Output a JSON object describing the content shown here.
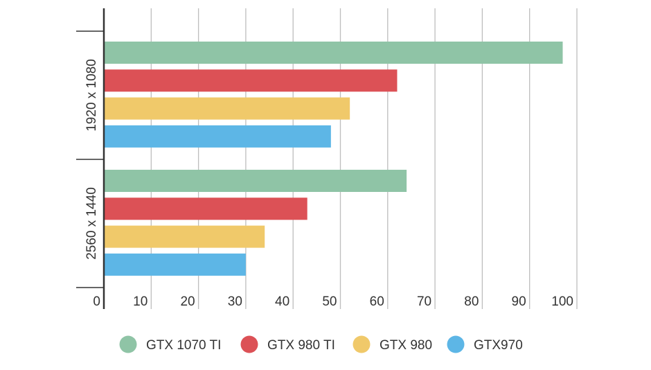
{
  "chart_data": {
    "type": "bar",
    "orientation": "horizontal",
    "title": "",
    "xlabel": "",
    "ylabel": "",
    "xlim": [
      0,
      100
    ],
    "xticks": [
      "0",
      "10",
      "20",
      "30",
      "40",
      "50",
      "60",
      "70",
      "80",
      "90",
      "100"
    ],
    "grid": true,
    "legend_position": "bottom",
    "categories": [
      "1920 x 1080",
      "2560 x 1440"
    ],
    "series": [
      {
        "name": "GTX 1070 TI",
        "color": "#8fc4a6",
        "values": [
          97,
          64
        ]
      },
      {
        "name": "GTX 980 TI",
        "color": "#dc5156",
        "values": [
          62,
          43
        ]
      },
      {
        "name": "GTX 980",
        "color": "#f0c96a",
        "values": [
          52,
          34
        ]
      },
      {
        "name": "GTX970",
        "color": "#5db6e6",
        "values": [
          48,
          30
        ]
      }
    ]
  }
}
